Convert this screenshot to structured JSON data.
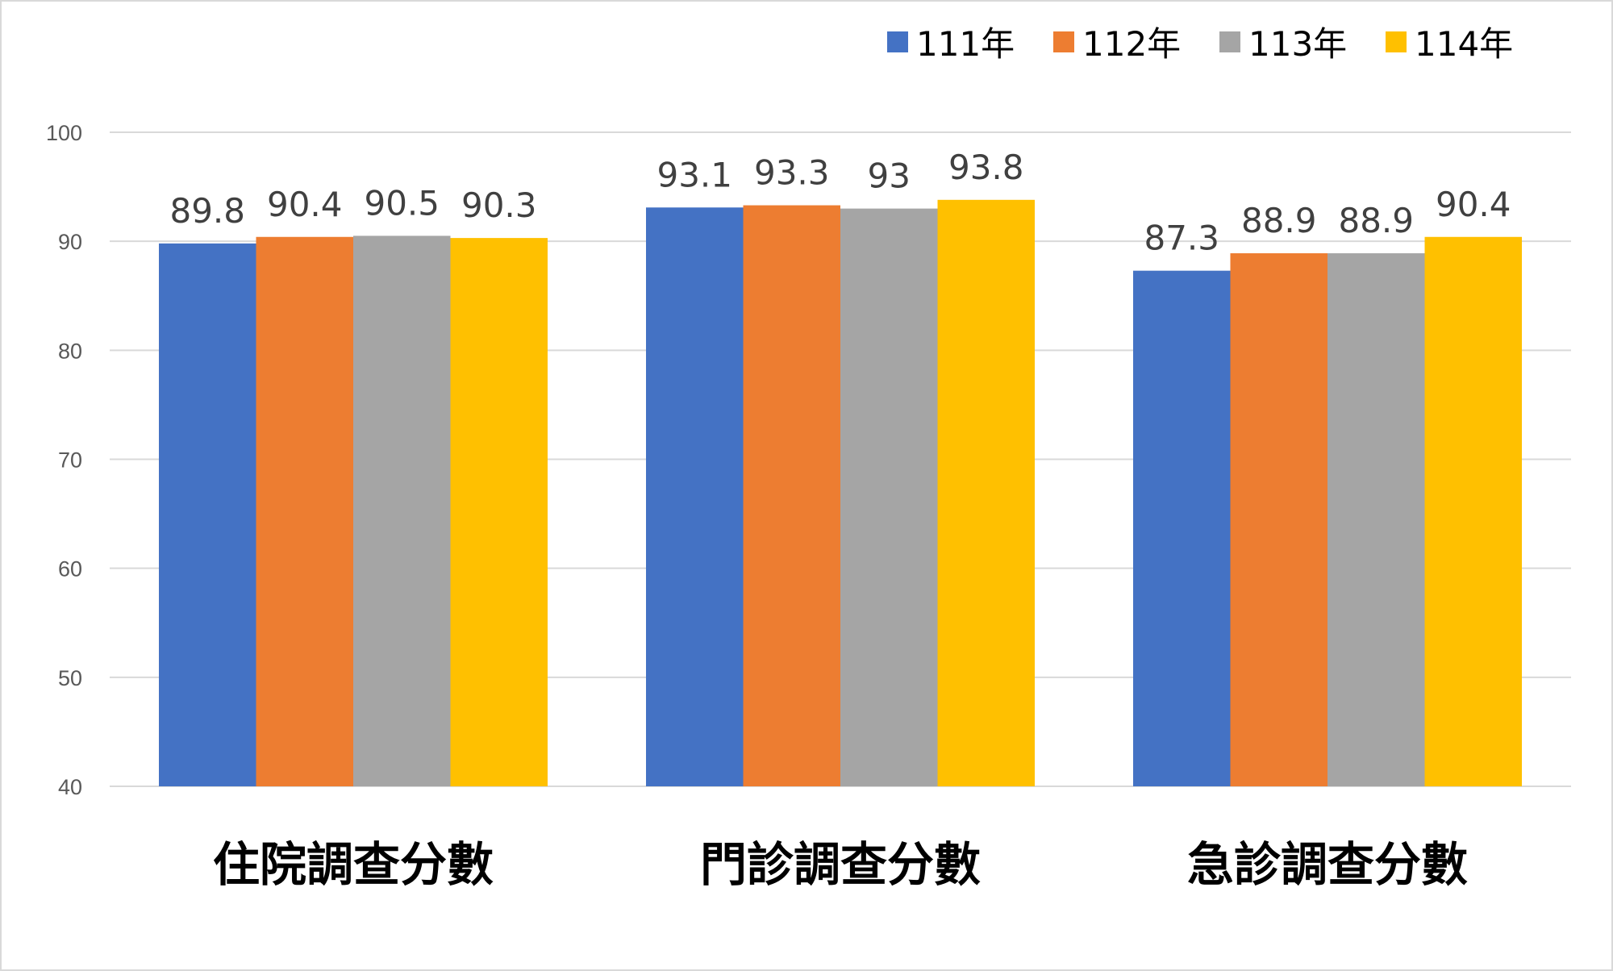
{
  "chart_data": {
    "type": "bar",
    "categories": [
      "住院調查分數",
      "門診調查分數",
      "急診調查分數"
    ],
    "series": [
      {
        "name": "111年",
        "color": "#4472C4",
        "values": [
          89.8,
          93.1,
          87.3
        ]
      },
      {
        "name": "112年",
        "color": "#ED7D31",
        "values": [
          90.4,
          93.3,
          88.9
        ]
      },
      {
        "name": "113年",
        "color": "#A5A5A5",
        "values": [
          90.5,
          93,
          88.9
        ]
      },
      {
        "name": "114年",
        "color": "#FFC000",
        "values": [
          90.3,
          93.8,
          90.4
        ]
      }
    ],
    "ylim": [
      40,
      100
    ],
    "yticks": [
      40,
      50,
      60,
      70,
      80,
      90,
      100
    ],
    "grid": true,
    "legend_position": "top-right",
    "data_labels": true
  }
}
